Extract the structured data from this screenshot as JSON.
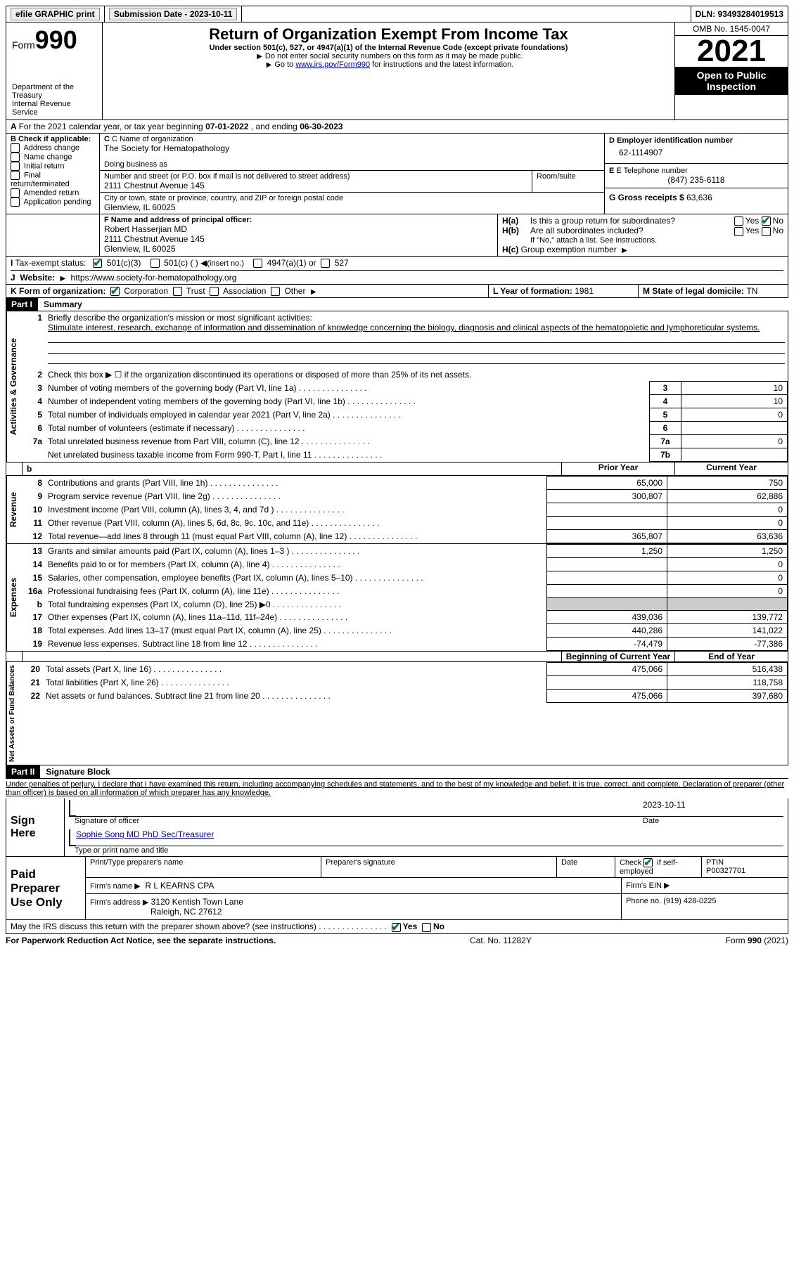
{
  "topbar": {
    "efile": "efile GRAPHIC print",
    "submission_label": "Submission Date - 2023-10-11",
    "dln_label": "DLN: 93493284019513"
  },
  "header": {
    "form_label": "Form",
    "form_number": "990",
    "dept": "Department of the Treasury\nInternal Revenue Service",
    "title": "Return of Organization Exempt From Income Tax",
    "subtitle": "Under section 501(c), 527, or 4947(a)(1) of the Internal Revenue Code (except private foundations)",
    "note1": "Do not enter social security numbers on this form as it may be made public.",
    "note2_pre": "Go to ",
    "note2_link": "www.irs.gov/Form990",
    "note2_post": " for instructions and the latest information.",
    "omb": "OMB No. 1545-0047",
    "year": "2021",
    "inspection": "Open to Public Inspection"
  },
  "periodA": {
    "text_pre": "For the 2021 calendar year, or tax year beginning ",
    "begin": "07-01-2022",
    "mid": " , and ending ",
    "end": "06-30-2023"
  },
  "boxB": {
    "label": "B Check if applicable:",
    "items": [
      "Address change",
      "Name change",
      "Initial return",
      "Final return/terminated",
      "Amended return",
      "Application pending"
    ]
  },
  "boxC": {
    "name_label": "C Name of organization",
    "name": "The Society for Hematopathology",
    "dba_label": "Doing business as",
    "street_label": "Number and street (or P.O. box if mail is not delivered to street address)",
    "room_label": "Room/suite",
    "street": "2111 Chestnut Avenue 145",
    "city_label": "City or town, state or province, country, and ZIP or foreign postal code",
    "city": "Glenview, IL  60025"
  },
  "boxD": {
    "label": "D Employer identification number",
    "value": "62-1114907"
  },
  "boxE": {
    "label": "E Telephone number",
    "value": "(847) 235-6118"
  },
  "boxG": {
    "label": "G Gross receipts $ ",
    "value": "63,636"
  },
  "boxF": {
    "label": "F  Name and address of principal officer:",
    "name": "Robert Hasserjian MD",
    "street": "2111 Chestnut Avenue 145",
    "city": "Glenview, IL  60025"
  },
  "boxH": {
    "ha": "Is this a group return for subordinates?",
    "hb": "Are all subordinates included?",
    "hb_note": "If \"No,\" attach a list. See instructions.",
    "hc": "Group exemption number",
    "yes": "Yes",
    "no": "No"
  },
  "boxI": {
    "label": "Tax-exempt status:",
    "opt1": "501(c)(3)",
    "opt2": "501(c) (  )",
    "opt2_note": "(insert no.)",
    "opt3": "4947(a)(1) or",
    "opt4": "527"
  },
  "boxJ": {
    "label": "Website:",
    "value": "https://www.society-for-hematopathology.org"
  },
  "boxK": {
    "label": "K Form of organization:",
    "opts": [
      "Corporation",
      "Trust",
      "Association",
      "Other"
    ]
  },
  "boxL": {
    "label": "L Year of formation: ",
    "value": "1981"
  },
  "boxM": {
    "label": "M State of legal domicile: ",
    "value": "TN"
  },
  "part1": {
    "tag": "Part I",
    "title": "Summary",
    "l1_label": "Briefly describe the organization's mission or most significant activities:",
    "l1_text": "Stimulate interest, research, exchange of information and dissemination of knowledge concerning the biology, diagnosis and clinical aspects of the hematopoietic and lymphoreticular systems.",
    "l2": "Check this box ▶ ☐ if the organization discontinued its operations or disposed of more than 25% of its net assets.",
    "vlab_ag": "Activities & Governance",
    "vlab_rev": "Revenue",
    "vlab_exp": "Expenses",
    "vlab_na": "Net Assets or Fund Balances",
    "lines_ag": [
      {
        "n": "3",
        "t": "Number of voting members of the governing body (Part VI, line 1a)",
        "box": "3",
        "v": "10"
      },
      {
        "n": "4",
        "t": "Number of independent voting members of the governing body (Part VI, line 1b)",
        "box": "4",
        "v": "10"
      },
      {
        "n": "5",
        "t": "Total number of individuals employed in calendar year 2021 (Part V, line 2a)",
        "box": "5",
        "v": "0"
      },
      {
        "n": "6",
        "t": "Total number of volunteers (estimate if necessary)",
        "box": "6",
        "v": ""
      },
      {
        "n": "7a",
        "t": "Total unrelated business revenue from Part VIII, column (C), line 12",
        "box": "7a",
        "v": "0"
      },
      {
        "n": "",
        "t": "Net unrelated business taxable income from Form 990-T, Part I, line 11",
        "box": "7b",
        "v": ""
      }
    ],
    "col_prior": "Prior Year",
    "col_current": "Current Year",
    "lines_rev": [
      {
        "n": "8",
        "t": "Contributions and grants (Part VIII, line 1h)",
        "p": "65,000",
        "c": "750"
      },
      {
        "n": "9",
        "t": "Program service revenue (Part VIII, line 2g)",
        "p": "300,807",
        "c": "62,886"
      },
      {
        "n": "10",
        "t": "Investment income (Part VIII, column (A), lines 3, 4, and 7d )",
        "p": "",
        "c": "0"
      },
      {
        "n": "11",
        "t": "Other revenue (Part VIII, column (A), lines 5, 6d, 8c, 9c, 10c, and 11e)",
        "p": "",
        "c": "0"
      },
      {
        "n": "12",
        "t": "Total revenue—add lines 8 through 11 (must equal Part VIII, column (A), line 12)",
        "p": "365,807",
        "c": "63,636"
      }
    ],
    "lines_exp": [
      {
        "n": "13",
        "t": "Grants and similar amounts paid (Part IX, column (A), lines 1–3 )",
        "p": "1,250",
        "c": "1,250"
      },
      {
        "n": "14",
        "t": "Benefits paid to or for members (Part IX, column (A), line 4)",
        "p": "",
        "c": "0"
      },
      {
        "n": "15",
        "t": "Salaries, other compensation, employee benefits (Part IX, column (A), lines 5–10)",
        "p": "",
        "c": "0"
      },
      {
        "n": "16a",
        "t": "Professional fundraising fees (Part IX, column (A), line 11e)",
        "p": "",
        "c": "0"
      },
      {
        "n": "b",
        "t": "Total fundraising expenses (Part IX, column (D), line 25) ▶0",
        "p": "shade",
        "c": "shade"
      },
      {
        "n": "17",
        "t": "Other expenses (Part IX, column (A), lines 11a–11d, 11f–24e)",
        "p": "439,036",
        "c": "139,772"
      },
      {
        "n": "18",
        "t": "Total expenses. Add lines 13–17 (must equal Part IX, column (A), line 25)",
        "p": "440,286",
        "c": "141,022"
      },
      {
        "n": "19",
        "t": "Revenue less expenses. Subtract line 18 from line 12",
        "p": "-74,479",
        "c": "-77,386"
      }
    ],
    "col_begin": "Beginning of Current Year",
    "col_end": "End of Year",
    "lines_na": [
      {
        "n": "20",
        "t": "Total assets (Part X, line 16)",
        "p": "475,066",
        "c": "516,438"
      },
      {
        "n": "21",
        "t": "Total liabilities (Part X, line 26)",
        "p": "",
        "c": "118,758"
      },
      {
        "n": "22",
        "t": "Net assets or fund balances. Subtract line 21 from line 20",
        "p": "475,066",
        "c": "397,680"
      }
    ]
  },
  "part2": {
    "tag": "Part II",
    "title": "Signature Block",
    "decl": "Under penalties of perjury, I declare that I have examined this return, including accompanying schedules and statements, and to the best of my knowledge and belief, it is true, correct, and complete. Declaration of preparer (other than officer) is based on all information of which preparer has any knowledge.",
    "sign_here": "Sign Here",
    "sig_officer": "Signature of officer",
    "sig_date": "2023-10-11",
    "date_label": "Date",
    "printed": "Sophie Song MD PhD  Sec/Treasurer",
    "printed_label": "Type or print name and title",
    "paid": "Paid Preparer Use Only",
    "prep_name_label": "Print/Type preparer's name",
    "prep_sig_label": "Preparer's signature",
    "prep_date_label": "Date",
    "check_self": "Check ☑ if self-employed",
    "ptin_label": "PTIN",
    "ptin": "P00327701",
    "firm_name_label": "Firm's name ▶",
    "firm_name": "R L KEARNS CPA",
    "firm_ein_label": "Firm's EIN ▶",
    "firm_addr_label": "Firm's address ▶",
    "firm_addr1": "3120 Kentish Town Lane",
    "firm_addr2": "Raleigh, NC  27612",
    "firm_phone_label": "Phone no. ",
    "firm_phone": "(919) 428-0225",
    "discuss": "May the IRS discuss this return with the preparer shown above? (see instructions)"
  },
  "footer": {
    "left": "For Paperwork Reduction Act Notice, see the separate instructions.",
    "mid": "Cat. No. 11282Y",
    "right": "Form 990 (2021)"
  }
}
